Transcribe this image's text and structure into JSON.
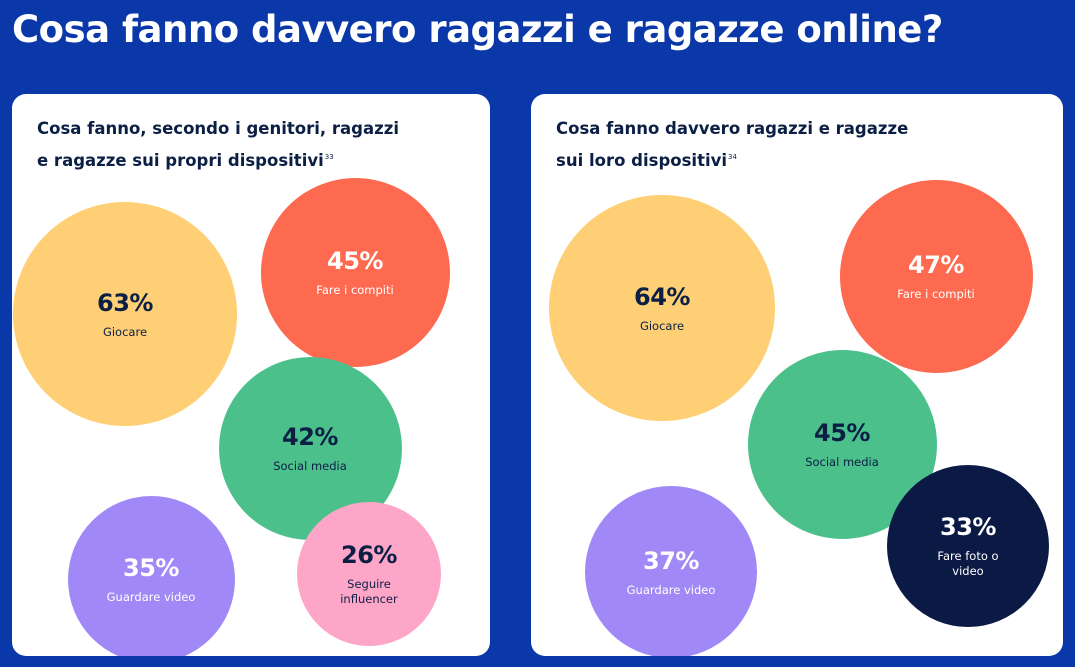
{
  "page": {
    "title": "Cosa fanno davvero ragazzi e ragazze online?"
  },
  "colors": {
    "background": "#0a38a8",
    "panel": "#ffffff",
    "title_text": "#0b1f45",
    "giocare": "#fecf74",
    "compiti": "#fe6a4f",
    "social": "#4cc08b",
    "video": "#a088f7",
    "influencer": "#fea6c8",
    "foto": "#0b1a45"
  },
  "chart_data": [
    {
      "type": "bubble",
      "title_line1": "Cosa fanno, secondo i genitori, ragazzi",
      "title_line2": "e ragazze sui propri dispositivi",
      "footnote": "33",
      "items": [
        {
          "label": "Giocare",
          "value_label": "63%",
          "value": 63,
          "color": "#fecf74",
          "text_color": "#0b1f45"
        },
        {
          "label": "Fare i compiti",
          "value_label": "45%",
          "value": 45,
          "color": "#fe6a4f",
          "text_color": "#ffffff"
        },
        {
          "label": "Social media",
          "value_label": "42%",
          "value": 42,
          "color": "#4cc08b",
          "text_color": "#0b1f45"
        },
        {
          "label": "Guardare video",
          "value_label": "35%",
          "value": 35,
          "color": "#a088f7",
          "text_color": "#ffffff"
        },
        {
          "label": "Seguire influencer",
          "value_label": "26%",
          "value": 26,
          "color": "#fea6c8",
          "text_color": "#0b1f45"
        }
      ]
    },
    {
      "type": "bubble",
      "title_line1": "Cosa fanno davvero ragazzi e ragazze",
      "title_line2": "sui loro dispositivi",
      "footnote": "34",
      "items": [
        {
          "label": "Giocare",
          "value_label": "64%",
          "value": 64,
          "color": "#fecf74",
          "text_color": "#0b1f45"
        },
        {
          "label": "Fare i compiti",
          "value_label": "47%",
          "value": 47,
          "color": "#fe6a4f",
          "text_color": "#ffffff"
        },
        {
          "label": "Social media",
          "value_label": "45%",
          "value": 45,
          "color": "#4cc08b",
          "text_color": "#0b1f45"
        },
        {
          "label": "Guardare video",
          "value_label": "37%",
          "value": 37,
          "color": "#a088f7",
          "text_color": "#ffffff"
        },
        {
          "label": "Fare foto o video",
          "value_label": "33%",
          "value": 33,
          "color": "#0b1a45",
          "text_color": "#ffffff"
        }
      ]
    }
  ]
}
